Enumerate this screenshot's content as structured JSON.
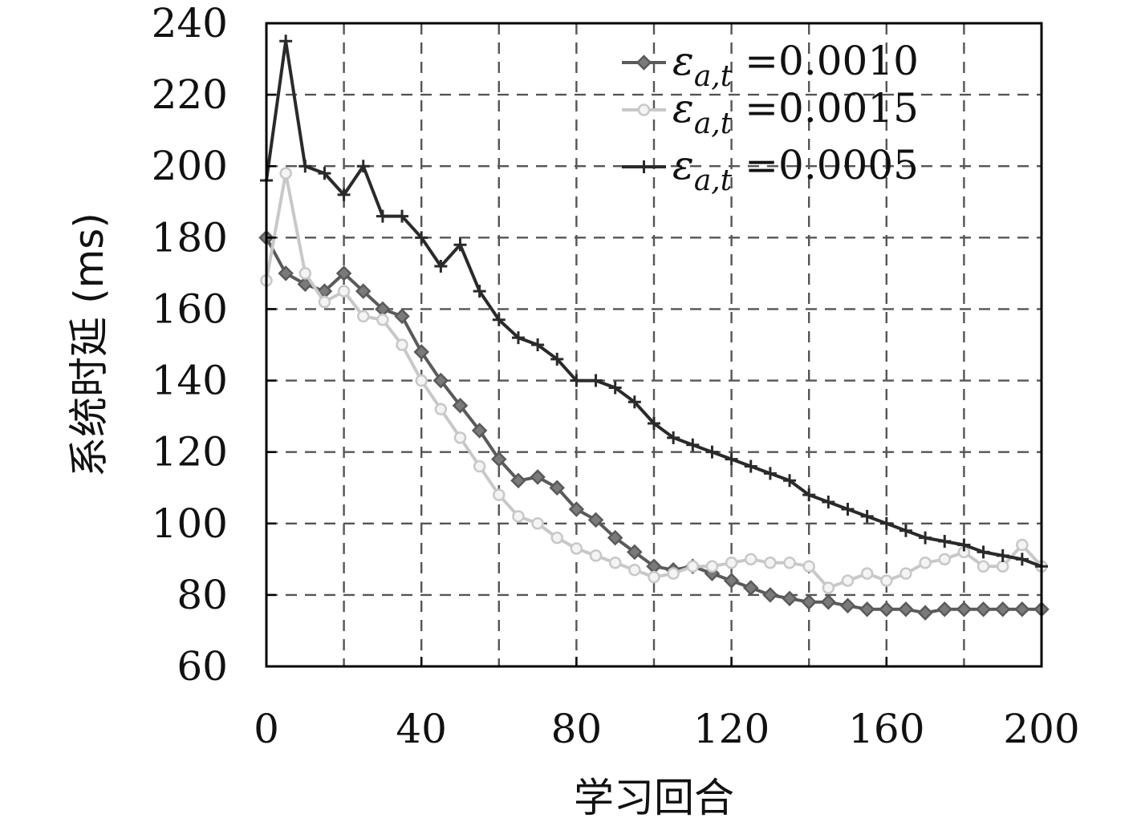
{
  "chart_data": {
    "type": "line",
    "title": "",
    "xlabel": "学习回合",
    "ylabel": "系统时延 (ms)",
    "xlim": [
      0,
      200
    ],
    "ylim": [
      60,
      240
    ],
    "xticks": [
      0,
      40,
      80,
      120,
      160,
      200
    ],
    "yticks": [
      60,
      80,
      100,
      120,
      140,
      160,
      180,
      200,
      220,
      240
    ],
    "grid": true,
    "legend_position": "top-right",
    "series": [
      {
        "name": "ε_{a,t} =0.0010",
        "legend_symbol": "ε",
        "legend_subscript": "a,t",
        "legend_value": " =0.0010",
        "color": "#5a5a5a",
        "marker": "diamond",
        "x": [
          0,
          5,
          10,
          15,
          20,
          25,
          30,
          35,
          40,
          45,
          50,
          55,
          60,
          65,
          70,
          75,
          80,
          85,
          90,
          95,
          100,
          105,
          110,
          115,
          120,
          125,
          130,
          135,
          140,
          145,
          150,
          155,
          160,
          165,
          170,
          175,
          180,
          185,
          190,
          195,
          200
        ],
        "y": [
          180,
          170,
          167,
          165,
          170,
          165,
          160,
          158,
          148,
          140,
          133,
          126,
          118,
          112,
          113,
          110,
          104,
          101,
          96,
          92,
          88,
          87,
          88,
          86,
          84,
          82,
          80,
          79,
          78,
          78,
          77,
          76,
          76,
          76,
          75,
          76,
          76,
          76,
          76,
          76,
          76
        ]
      },
      {
        "name": "ε_{a,t} =0.0015",
        "legend_symbol": "ε",
        "legend_subscript": "a,t",
        "legend_value": " =0.0015",
        "color": "#c8c8c8",
        "marker": "circle",
        "x": [
          0,
          5,
          10,
          15,
          20,
          25,
          30,
          35,
          40,
          45,
          50,
          55,
          60,
          65,
          70,
          75,
          80,
          85,
          90,
          95,
          100,
          105,
          110,
          115,
          120,
          125,
          130,
          135,
          140,
          145,
          150,
          155,
          160,
          165,
          170,
          175,
          180,
          185,
          190,
          195,
          200
        ],
        "y": [
          168,
          198,
          170,
          162,
          165,
          158,
          157,
          150,
          140,
          132,
          124,
          116,
          108,
          102,
          100,
          96,
          93,
          91,
          89,
          87,
          85,
          86,
          88,
          88,
          89,
          90,
          89,
          89,
          88,
          82,
          84,
          86,
          84,
          86,
          89,
          90,
          92,
          88,
          88,
          94,
          88
        ]
      },
      {
        "name": "ε_{a,t} =0.0005",
        "legend_symbol": "ε",
        "legend_subscript": "a,t",
        "legend_value": " =0.0005",
        "color": "#2a2a2a",
        "marker": "plus",
        "x": [
          0,
          5,
          10,
          15,
          20,
          25,
          30,
          35,
          40,
          45,
          50,
          55,
          60,
          65,
          70,
          75,
          80,
          85,
          90,
          95,
          100,
          105,
          110,
          115,
          120,
          125,
          130,
          135,
          140,
          145,
          150,
          155,
          160,
          165,
          170,
          175,
          180,
          185,
          190,
          195,
          200
        ],
        "y": [
          196,
          235,
          200,
          198,
          192,
          200,
          186,
          186,
          180,
          172,
          178,
          165,
          157,
          152,
          150,
          146,
          140,
          140,
          138,
          134,
          128,
          124,
          122,
          120,
          118,
          116,
          114,
          112,
          108,
          106,
          104,
          102,
          100,
          98,
          96,
          95,
          94,
          92,
          91,
          90,
          88
        ]
      }
    ]
  }
}
